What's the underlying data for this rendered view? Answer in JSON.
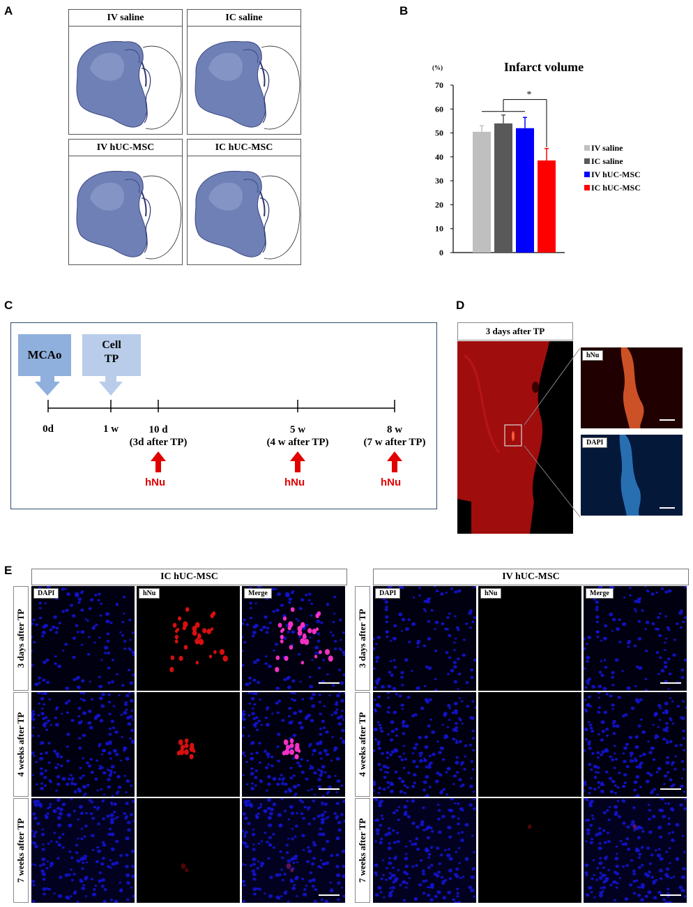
{
  "panel_letters": {
    "a": "A",
    "b": "B",
    "c": "C",
    "d": "D",
    "e": "E"
  },
  "panel_a": {
    "titles": [
      "IV saline",
      "IC saline",
      "IV hUC-MSC",
      "IC hUC-MSC"
    ]
  },
  "chart_data": {
    "type": "bar",
    "title": "Infarct  volume",
    "ylabel": "(%)",
    "ylim": [
      0,
      70
    ],
    "yticks": [
      "0",
      "10",
      "20",
      "30",
      "40",
      "50",
      "60",
      "70"
    ],
    "categories": [
      "IV saline",
      "IC saline",
      "IV hUC-MSC",
      "IC hUC-MSC"
    ],
    "values": [
      50.5,
      54,
      52,
      38.5
    ],
    "errors": [
      2.5,
      3.5,
      4.5,
      5
    ],
    "colors": [
      "#bfbfbf",
      "#595959",
      "#0000ff",
      "#ff0000"
    ],
    "significance": "*",
    "legend": [
      "IV saline",
      "IC saline",
      "IV hUC-MSC",
      "IC hUC-MSC"
    ],
    "legend_position": "right",
    "grid": false
  },
  "panel_c": {
    "boxes": [
      "MCAo",
      "Cell\nTP"
    ],
    "box_colors": [
      "#8fb0dc",
      "#b9cdea"
    ],
    "ticks": [
      "0d",
      "1 w",
      "10 d\n(3d after TP)",
      "5 w\n(4 w after TP)",
      "8 w\n(7 w after TP)"
    ],
    "marker": "hNu",
    "marker_color": "#e00000"
  },
  "panel_d": {
    "title": "3 days after TP",
    "insets": [
      "hNu",
      "DAPI"
    ]
  },
  "panel_e": {
    "groups": [
      "IC hUC-MSC",
      "IV hUC-MSC"
    ],
    "channels": [
      "DAPI",
      "hNu",
      "Merge"
    ],
    "rows": [
      "3 days after TP",
      "4 weeks after TP",
      "7 weeks after TP"
    ]
  }
}
